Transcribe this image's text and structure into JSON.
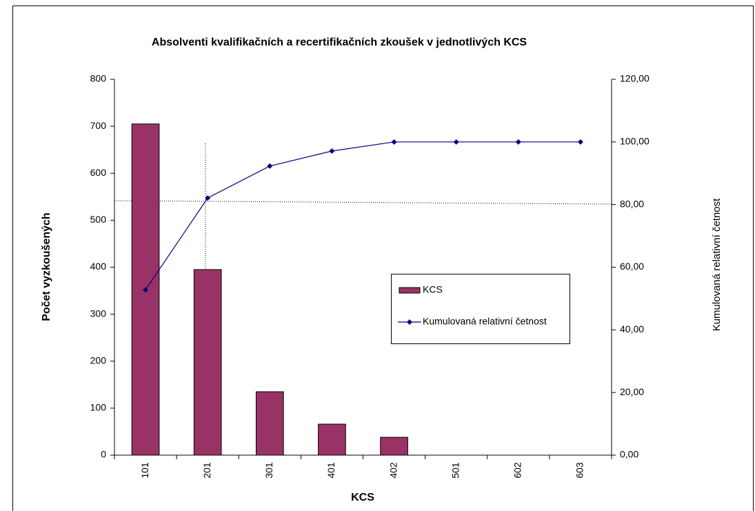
{
  "chart_data": {
    "type": "bar",
    "title": "Absolventi kvalifikačních a recertifikačních zkoušek v jednotlivých KCS",
    "xlabel": "KCS",
    "ylabel": "Počet vyzkoušených",
    "y2label": "Kumulovaná relativní četnost",
    "categories": [
      "101",
      "201",
      "301",
      "401",
      "402",
      "501",
      "602",
      "603"
    ],
    "series": [
      {
        "name": "KCS",
        "type": "bar",
        "color": "#993366",
        "values": [
          705,
          395,
          135,
          66,
          38,
          0,
          0,
          0
        ]
      },
      {
        "name": "Kumulovaná relativní četnost",
        "type": "line",
        "axis": "y2",
        "color": "#000080",
        "values": [
          52.8,
          82.1,
          92.3,
          97.1,
          100,
          100,
          100,
          100
        ]
      }
    ],
    "ylim": [
      0,
      800
    ],
    "yticks": [
      0,
      100,
      200,
      300,
      400,
      500,
      600,
      700,
      800
    ],
    "y2lim": [
      0,
      120
    ],
    "y2ticks": [
      {
        "value": 0,
        "label": "0,00"
      },
      {
        "value": 20,
        "label": "20,00"
      },
      {
        "value": 40,
        "label": "40,00"
      },
      {
        "value": 60,
        "label": "60,00"
      },
      {
        "value": 80,
        "label": "80,00"
      },
      {
        "value": 100,
        "label": "100,00"
      },
      {
        "value": 120,
        "label": "120,00"
      }
    ],
    "legend": "center right"
  }
}
